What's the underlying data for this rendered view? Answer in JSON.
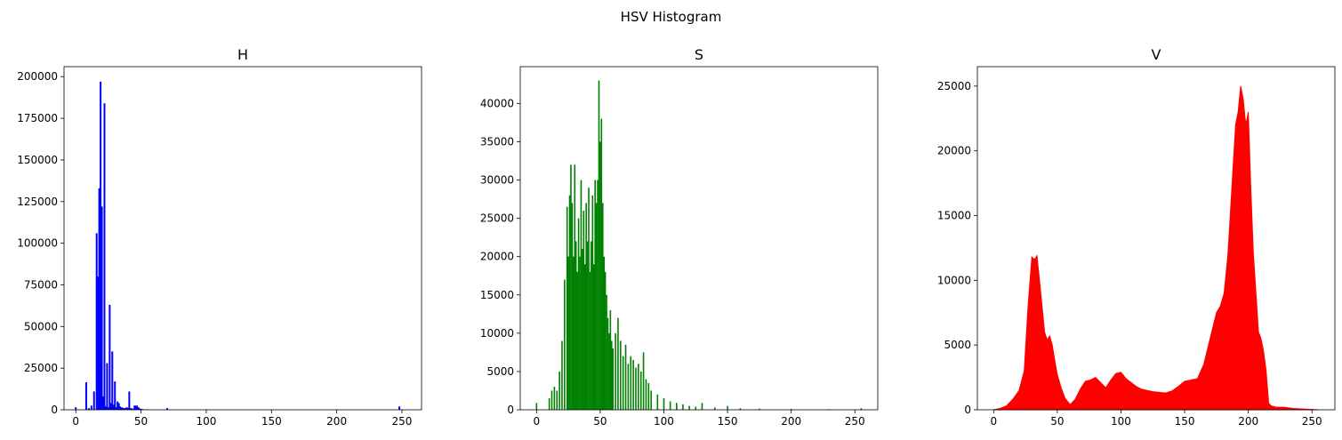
{
  "figure": {
    "suptitle": "HSV Histogram"
  },
  "chart_data": [
    {
      "type": "bar",
      "title": "H",
      "color": "#0000ff",
      "xlabel": "",
      "ylabel": "",
      "xlim": [
        -9,
        265
      ],
      "ylim": [
        0,
        206000
      ],
      "xticks": [
        0,
        50,
        100,
        150,
        200,
        250
      ],
      "yticks": [
        0,
        25000,
        50000,
        75000,
        100000,
        125000,
        150000,
        175000,
        200000
      ],
      "grid": false,
      "x": [
        0,
        8,
        10,
        12,
        14,
        16,
        17,
        18,
        19,
        20,
        21,
        22,
        23,
        24,
        25,
        26,
        27,
        28,
        29,
        30,
        31,
        32,
        33,
        34,
        35,
        36,
        37,
        38,
        39,
        40,
        41,
        42,
        43,
        44,
        45,
        46,
        47,
        48,
        49,
        50,
        51,
        52,
        55,
        60,
        70,
        80,
        100,
        150,
        200,
        248
      ],
      "values": [
        1500,
        16500,
        1000,
        2500,
        11000,
        106000,
        80000,
        133000,
        197000,
        122000,
        8000,
        184000,
        2000,
        28000,
        1500,
        63000,
        4000,
        35000,
        3000,
        17000,
        1500,
        5000,
        4000,
        2000,
        1500,
        1200,
        1000,
        1000,
        1500,
        1200,
        11000,
        1000,
        800,
        500,
        2500,
        2500,
        2500,
        1500,
        800,
        500,
        400,
        300,
        300,
        200,
        1000,
        200,
        200,
        200,
        200,
        2000
      ]
    },
    {
      "type": "bar",
      "title": "S",
      "color": "#008000",
      "xlabel": "",
      "ylabel": "",
      "xlim": [
        -12.8,
        268
      ],
      "ylim": [
        0,
        44800
      ],
      "xticks": [
        0,
        50,
        100,
        150,
        200,
        250
      ],
      "yticks": [
        0,
        5000,
        10000,
        15000,
        20000,
        25000,
        30000,
        35000,
        40000
      ],
      "grid": false,
      "x": [
        0,
        10,
        12,
        14,
        16,
        18,
        20,
        22,
        24,
        25,
        26,
        27,
        28,
        29,
        30,
        31,
        32,
        33,
        34,
        35,
        36,
        37,
        38,
        39,
        40,
        41,
        42,
        43,
        44,
        45,
        46,
        47,
        48,
        49,
        50,
        51,
        52,
        53,
        54,
        55,
        56,
        57,
        58,
        59,
        60,
        62,
        64,
        66,
        68,
        70,
        72,
        74,
        76,
        78,
        80,
        82,
        84,
        86,
        88,
        90,
        95,
        100,
        105,
        110,
        115,
        120,
        125,
        130,
        140,
        150,
        160,
        175,
        200,
        230,
        255
      ],
      "values": [
        900,
        1500,
        2500,
        3000,
        2500,
        5000,
        9000,
        17000,
        26500,
        20000,
        28000,
        32000,
        27000,
        20000,
        32000,
        22000,
        18000,
        25000,
        20000,
        30000,
        21000,
        26000,
        19000,
        27000,
        22000,
        29000,
        18000,
        22000,
        28000,
        19000,
        30000,
        27000,
        30000,
        43000,
        35000,
        38000,
        27000,
        20000,
        18000,
        15000,
        12000,
        10000,
        13000,
        9000,
        8000,
        10000,
        12000,
        9000,
        7000,
        8500,
        6000,
        7000,
        6500,
        5500,
        6000,
        5000,
        7500,
        4000,
        3500,
        2500,
        2000,
        1500,
        1100,
        900,
        700,
        500,
        400,
        900,
        300,
        500,
        200,
        150,
        100,
        80,
        200
      ]
    },
    {
      "type": "area",
      "title": "V",
      "color": "#ff0000",
      "xlabel": "",
      "ylabel": "",
      "xlim": [
        -12.8,
        268
      ],
      "ylim": [
        0,
        26500
      ],
      "xticks": [
        0,
        50,
        100,
        150,
        200,
        250
      ],
      "yticks": [
        0,
        5000,
        10000,
        15000,
        20000,
        25000
      ],
      "grid": false,
      "x": [
        0,
        5,
        10,
        15,
        20,
        24,
        27,
        30,
        32,
        34,
        36,
        38,
        40,
        42,
        44,
        46,
        48,
        50,
        53,
        56,
        60,
        64,
        68,
        72,
        76,
        80,
        84,
        88,
        92,
        96,
        100,
        104,
        108,
        112,
        116,
        120,
        125,
        130,
        135,
        140,
        145,
        150,
        155,
        160,
        165,
        170,
        175,
        178,
        181,
        184,
        187,
        190,
        192,
        194,
        196,
        198,
        200,
        202,
        204,
        206,
        208,
        210,
        212,
        214,
        216,
        218,
        222,
        228,
        235,
        245,
        255
      ],
      "values": [
        0,
        100,
        300,
        800,
        1500,
        3000,
        8000,
        11800,
        11600,
        11900,
        10000,
        8000,
        6000,
        5400,
        5700,
        5000,
        3800,
        2700,
        1700,
        900,
        400,
        800,
        1600,
        2200,
        2300,
        2500,
        2100,
        1700,
        2300,
        2800,
        2900,
        2400,
        2100,
        1800,
        1600,
        1500,
        1400,
        1350,
        1300,
        1450,
        1800,
        2200,
        2300,
        2400,
        3500,
        5500,
        7500,
        8000,
        9000,
        12000,
        17000,
        22000,
        23000,
        25000,
        24000,
        22000,
        23000,
        17000,
        12000,
        9000,
        6000,
        5500,
        4500,
        3000,
        500,
        300,
        200,
        200,
        100,
        50,
        0
      ]
    }
  ]
}
